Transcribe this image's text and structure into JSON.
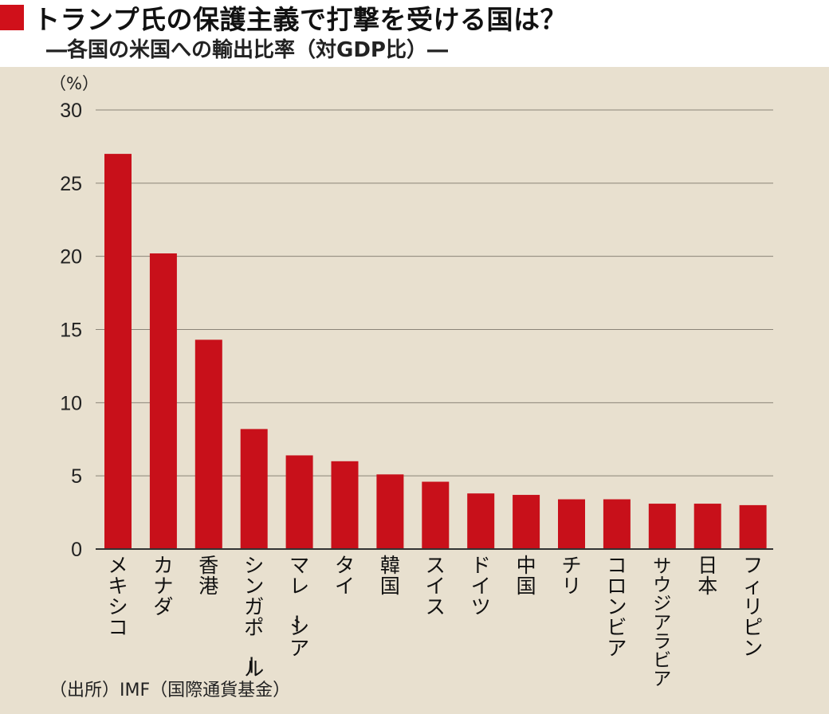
{
  "header": {
    "title": "トランプ氏の保護主義で打撃を受ける国は？",
    "subtitle": "―各国の米国への輸出比率（対GDP比）―"
  },
  "source": "（出所）IMF（国際通貨基金）",
  "colors": {
    "bar": "#c8101a",
    "marker": "#d0101a",
    "panel": "#e8e0cf",
    "grid": "#8a8478"
  },
  "chart_data": {
    "type": "bar",
    "unit_label": "（%）",
    "categories": [
      "メキシコ",
      "カナダ",
      "香港",
      "シンガポール",
      "マレーシア",
      "タイ",
      "韓国",
      "スイス",
      "ドイツ",
      "中国",
      "チリ",
      "コロンビア",
      "サウジアラビア",
      "日本",
      "フィリピン"
    ],
    "values": [
      27.0,
      20.2,
      14.3,
      8.2,
      6.4,
      6.0,
      5.1,
      4.6,
      3.8,
      3.7,
      3.4,
      3.4,
      3.1,
      3.1,
      3.0
    ],
    "ylim": [
      0,
      30
    ],
    "yticks": [
      0,
      5,
      10,
      15,
      20,
      25,
      30
    ],
    "grid": true
  }
}
